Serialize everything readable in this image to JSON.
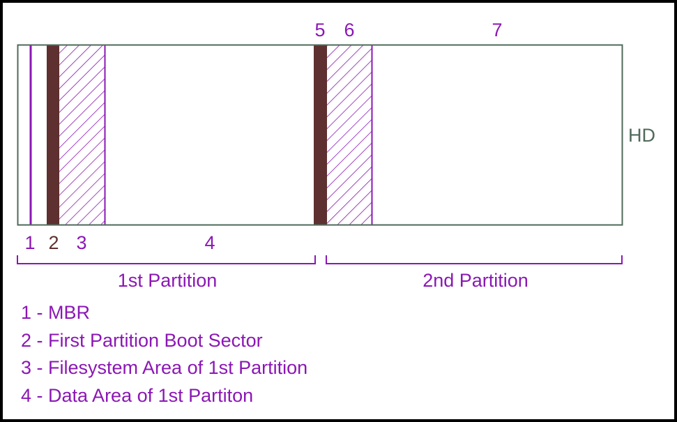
{
  "colors": {
    "purple": "#8b17b4",
    "maroon": "#5e3030",
    "gray_green": "#4f6a5a",
    "background": "#ffffff",
    "frame": "#000000"
  },
  "disk": {
    "label": "HD"
  },
  "segments": [
    {
      "number": "1",
      "name": "MBR",
      "style": "thin-purple-line"
    },
    {
      "number": "2",
      "name": "First Partition Boot Sector",
      "style": "solid-maroon"
    },
    {
      "number": "3",
      "name": "Filesystem Area of 1st Partition",
      "style": "hatched-purple"
    },
    {
      "number": "4",
      "name": "Data Area of 1st Partiton",
      "style": "empty"
    },
    {
      "number": "5",
      "name": "",
      "style": "solid-maroon"
    },
    {
      "number": "6",
      "name": "",
      "style": "hatched-purple"
    },
    {
      "number": "7",
      "name": "",
      "style": "empty"
    }
  ],
  "partitions": [
    {
      "label": "1st Partition"
    },
    {
      "label": "2nd Partition"
    }
  ],
  "legend": [
    "1 - MBR",
    "2 - First Partition Boot Sector",
    "3 - Filesystem Area of 1st Partition",
    "4 - Data Area of 1st Partiton"
  ]
}
